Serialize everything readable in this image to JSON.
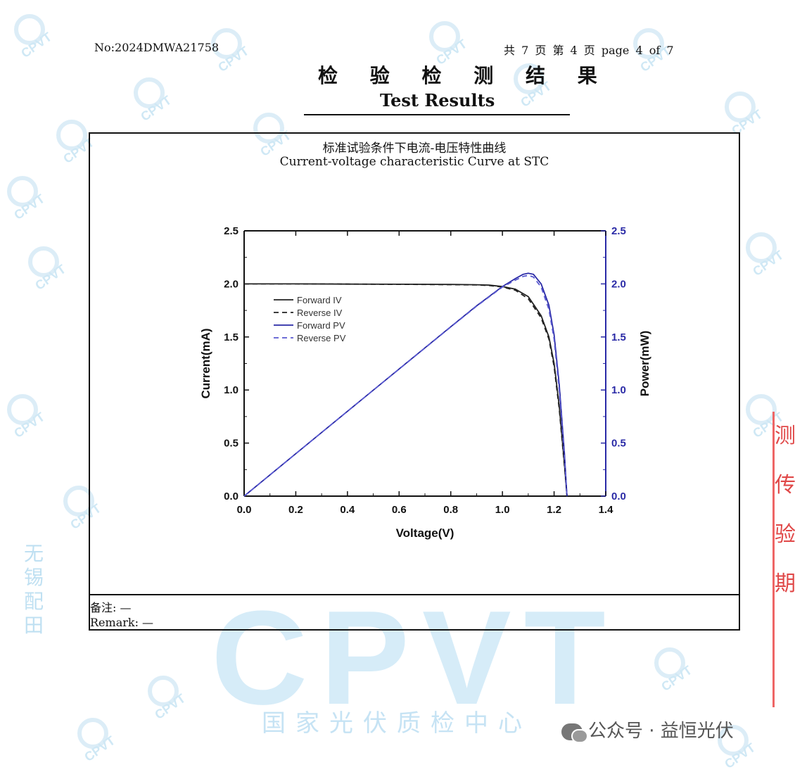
{
  "header": {
    "report_no": "No:2024DMWA21758",
    "page_info": "共 7 页 第 4 页 page 4 of 7"
  },
  "title": {
    "cn": "检 验 检 测 结 果",
    "en": "Test Results"
  },
  "chart_title": {
    "cn": "标准试验条件下电流-电压特性曲线",
    "en": "Current-voltage characteristic Curve at STC"
  },
  "remark": {
    "cn": "备注: —",
    "en": "Remark: —"
  },
  "watermark": {
    "logo_text": "CPVT",
    "center_text": "国家光伏质检中心",
    "side_text": "无锡配田",
    "color": "#cfe8f5"
  },
  "stamp": {
    "text": "测传验期",
    "color": "#e04848"
  },
  "wechat": {
    "text": "公众号 · 益恒光伏"
  },
  "chart_data": {
    "type": "line",
    "title": "",
    "xlabel": "Voltage(V)",
    "ylabel": "Current(mA)",
    "y2label": "Power(mW)",
    "xlim": [
      0,
      1.4
    ],
    "ylim": [
      0,
      2.5
    ],
    "y2lim": [
      0,
      2.5
    ],
    "x_ticks": [
      "0.0",
      "0.2",
      "0.4",
      "0.6",
      "0.8",
      "1.0",
      "1.2",
      "1.4"
    ],
    "y_ticks": [
      "0.0",
      "0.5",
      "1.0",
      "1.5",
      "2.0",
      "2.5"
    ],
    "y2_ticks": [
      "0.0",
      "0.5",
      "1.0",
      "1.5",
      "2.0",
      "2.5"
    ],
    "grid": false,
    "legend_position": "top-left",
    "series": [
      {
        "name": "Forward IV",
        "axis": "left",
        "color": "#222222",
        "dash": "solid",
        "x": [
          0,
          0.2,
          0.4,
          0.6,
          0.8,
          0.9,
          0.95,
          1.0,
          1.05,
          1.1,
          1.15,
          1.18,
          1.2,
          1.22,
          1.24,
          1.25
        ],
        "y": [
          2.0,
          2.0,
          1.998,
          1.997,
          1.995,
          1.992,
          1.988,
          1.975,
          1.95,
          1.88,
          1.7,
          1.5,
          1.25,
          0.85,
          0.3,
          0.0
        ]
      },
      {
        "name": "Reverse IV",
        "axis": "left",
        "color": "#222222",
        "dash": "dashed",
        "x": [
          0,
          0.2,
          0.4,
          0.6,
          0.8,
          0.9,
          0.95,
          1.0,
          1.05,
          1.1,
          1.15,
          1.18,
          1.2,
          1.22,
          1.24,
          1.25
        ],
        "y": [
          2.0,
          2.0,
          1.998,
          1.996,
          1.993,
          1.99,
          1.985,
          1.97,
          1.94,
          1.86,
          1.68,
          1.48,
          1.22,
          0.82,
          0.28,
          0.0
        ]
      },
      {
        "name": "Forward PV",
        "axis": "right",
        "color": "#2a2aa6",
        "dash": "solid",
        "x": [
          0,
          0.2,
          0.4,
          0.6,
          0.8,
          0.9,
          1.0,
          1.05,
          1.08,
          1.1,
          1.12,
          1.15,
          1.18,
          1.2,
          1.22,
          1.24,
          1.25
        ],
        "y": [
          0,
          0.4,
          0.8,
          1.198,
          1.596,
          1.793,
          1.975,
          2.05,
          2.09,
          2.1,
          2.09,
          2.0,
          1.8,
          1.52,
          1.05,
          0.4,
          0.0
        ]
      },
      {
        "name": "Reverse PV",
        "axis": "right",
        "color": "#5a5ad0",
        "dash": "dashed",
        "x": [
          0,
          0.2,
          0.4,
          0.6,
          0.8,
          0.9,
          1.0,
          1.05,
          1.08,
          1.1,
          1.12,
          1.15,
          1.18,
          1.2,
          1.22,
          1.24,
          1.25
        ],
        "y": [
          0,
          0.4,
          0.8,
          1.197,
          1.594,
          1.79,
          1.97,
          2.035,
          2.07,
          2.08,
          2.065,
          1.97,
          1.76,
          1.48,
          1.0,
          0.36,
          0.0
        ]
      }
    ]
  }
}
